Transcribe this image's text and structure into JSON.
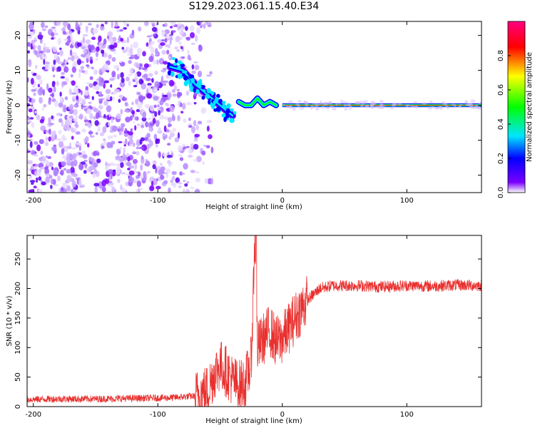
{
  "title": "S129.2023.061.15.40.E34",
  "chart_data": [
    {
      "type": "heatmap",
      "xlabel": "Height of straight line (km)",
      "ylabel": "Frequency (Hz)",
      "xlim": [
        -205,
        160
      ],
      "ylim": [
        -25,
        24
      ],
      "xticks": [
        -200,
        -100,
        0,
        100
      ],
      "yticks": [
        -20,
        -10,
        0,
        10,
        20
      ],
      "colorbar": {
        "label": "Normalized spectral amplitude",
        "range": [
          0,
          1
        ],
        "ticks": [
          0.0,
          0.2,
          0.4,
          0.6,
          0.8
        ],
        "tick_labels": [
          "0.0",
          "0.2",
          "0.4",
          "0.6",
          "0.8"
        ],
        "colormap": [
          "#ffffff",
          "#7a00ff",
          "#0000ff",
          "#00e5ff",
          "#00ff00",
          "#ffff00",
          "#ff0000",
          "#ff0080"
        ]
      },
      "features": {
        "noise_region_x": [
          -205,
          -70
        ],
        "descending_trace": [
          [
            -90,
            11
          ],
          [
            -80,
            10
          ],
          [
            -70,
            6
          ],
          [
            -60,
            3
          ],
          [
            -50,
            0
          ],
          [
            -40,
            -3
          ]
        ],
        "ripple_trace": [
          [
            -35,
            1
          ],
          [
            -30,
            0
          ],
          [
            -25,
            0
          ],
          [
            -20,
            2
          ],
          [
            -15,
            0
          ],
          [
            -10,
            1
          ],
          [
            -5,
            0
          ]
        ],
        "carrier_frequency": 0,
        "carrier_x": [
          0,
          160
        ]
      }
    },
    {
      "type": "line",
      "xlabel": "Height of straight line (km)",
      "ylabel": "SNR (10 * v/v)",
      "xlim": [
        -205,
        160
      ],
      "ylim": [
        0,
        290
      ],
      "xticks": [
        -200,
        -100,
        0,
        100
      ],
      "yticks": [
        0,
        50,
        100,
        150,
        200,
        250
      ],
      "color": "#e8302e",
      "series": [
        {
          "x": [
            -205,
            -180,
            -150,
            -120,
            -90,
            -70,
            -60,
            -55,
            -50,
            -45,
            -40,
            -35,
            -30,
            -25,
            -22,
            -20,
            -15,
            -10,
            -5,
            0,
            10,
            20,
            30,
            40,
            60,
            80,
            100,
            120,
            140,
            160
          ],
          "values": [
            12,
            13,
            13,
            14,
            15,
            18,
            28,
            55,
            70,
            60,
            45,
            35,
            40,
            75,
            290,
            100,
            115,
            130,
            110,
            115,
            150,
            180,
            200,
            205,
            205,
            203,
            205,
            204,
            206,
            205
          ]
        }
      ]
    }
  ]
}
